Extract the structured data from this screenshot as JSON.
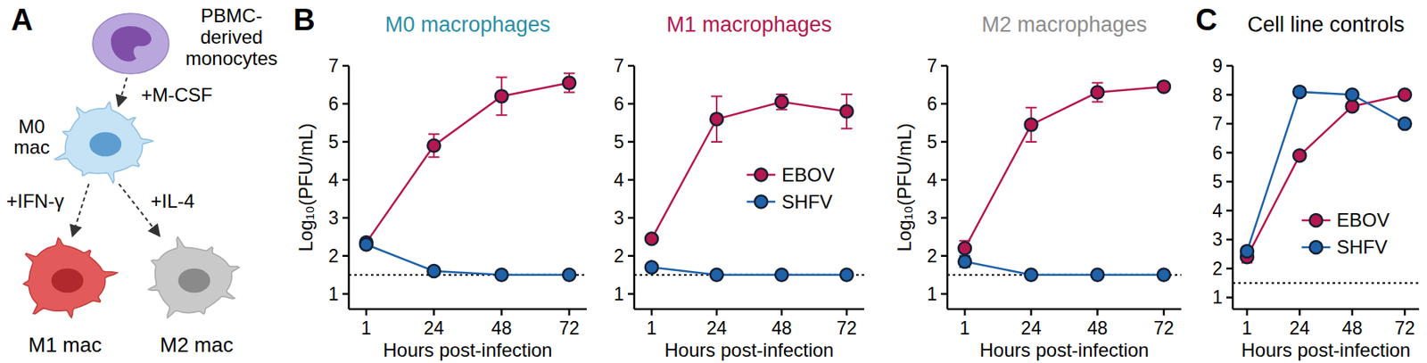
{
  "panel_labels": [
    "A",
    "B",
    "C"
  ],
  "diagram": {
    "monocyte": [
      "PBMC-",
      "derived",
      "monocytes"
    ],
    "step_m0": "+M-CSF",
    "m0": [
      "M0",
      "mac"
    ],
    "step_m1": "+IFN-γ",
    "step_m2": "+IL-4",
    "m1": "M1 mac",
    "m2": "M2 mac"
  },
  "chart_data": [
    {
      "type": "line",
      "title": "M0 macrophages",
      "color": "#2b8fa6",
      "x_label": "Hours post-infection",
      "y_label": "Log₁₀(PFU/mL)",
      "categories": [
        "1",
        "24",
        "48",
        "72"
      ],
      "ylim": [
        0.6,
        7
      ],
      "yticks": [
        1,
        2,
        3,
        4,
        5,
        6,
        7
      ],
      "detection_limit": 1.5,
      "marker": "circle",
      "series": [
        {
          "name": "EBOV",
          "color": "#b5174f",
          "values": [
            2.35,
            4.9,
            6.2,
            6.55
          ],
          "errors": [
            0.1,
            0.3,
            0.5,
            0.25
          ]
        },
        {
          "name": "SHFV",
          "color": "#1f62a8",
          "values": [
            2.3,
            1.6,
            1.5,
            1.5
          ],
          "errors": [
            0.08,
            0.05,
            0,
            0
          ]
        }
      ]
    },
    {
      "type": "line",
      "title": "M1 macrophages",
      "color": "#b5174f",
      "x_label": "Hours post-infection",
      "categories": [
        "1",
        "24",
        "48",
        "72"
      ],
      "ylim": [
        0.6,
        7
      ],
      "yticks": [
        1,
        2,
        3,
        4,
        5,
        6,
        7
      ],
      "detection_limit": 1.5,
      "marker": "circle",
      "legend": "right",
      "series": [
        {
          "name": "EBOV",
          "color": "#b5174f",
          "values": [
            2.45,
            5.6,
            6.05,
            5.8
          ],
          "errors": [
            0.08,
            0.6,
            0.2,
            0.45
          ]
        },
        {
          "name": "SHFV",
          "color": "#1f62a8",
          "values": [
            1.7,
            1.5,
            1.5,
            1.5
          ],
          "errors": [
            0.05,
            0,
            0,
            0
          ]
        }
      ]
    },
    {
      "type": "line",
      "title": "M2 macrophages",
      "color": "#8c8c8c",
      "x_label": "Hours post-infection",
      "y_label": "Log₁₀(PFU/mL)",
      "categories": [
        "1",
        "24",
        "48",
        "72"
      ],
      "ylim": [
        0.6,
        7
      ],
      "yticks": [
        1,
        2,
        3,
        4,
        5,
        6,
        7
      ],
      "detection_limit": 1.5,
      "marker": "circle",
      "series": [
        {
          "name": "EBOV",
          "color": "#b5174f",
          "values": [
            2.2,
            5.45,
            6.3,
            6.45
          ],
          "errors": [
            0.2,
            0.45,
            0.25,
            0.1
          ]
        },
        {
          "name": "SHFV",
          "color": "#1f62a8",
          "values": [
            1.85,
            1.5,
            1.5,
            1.5
          ],
          "errors": [
            0.15,
            0,
            0,
            0
          ]
        }
      ]
    },
    {
      "type": "line",
      "title": "Cell line controls",
      "color": "#000000",
      "x_label": "Hours post-infection",
      "categories": [
        "1",
        "24",
        "48",
        "72"
      ],
      "ylim": [
        0.6,
        9
      ],
      "yticks": [
        1,
        2,
        3,
        4,
        5,
        6,
        7,
        8,
        9
      ],
      "detection_limit": 1.5,
      "marker": "circle",
      "legend": "lower right",
      "series": [
        {
          "name": "EBOV",
          "color": "#b5174f",
          "values": [
            2.4,
            5.9,
            7.6,
            8.0
          ],
          "errors": [
            0.2,
            0.1,
            0.1,
            0.1
          ]
        },
        {
          "name": "SHFV",
          "color": "#1f62a8",
          "values": [
            2.6,
            8.1,
            8.0,
            7.0
          ],
          "errors": [
            0.1,
            0.05,
            0.05,
            0.05
          ]
        }
      ]
    }
  ]
}
